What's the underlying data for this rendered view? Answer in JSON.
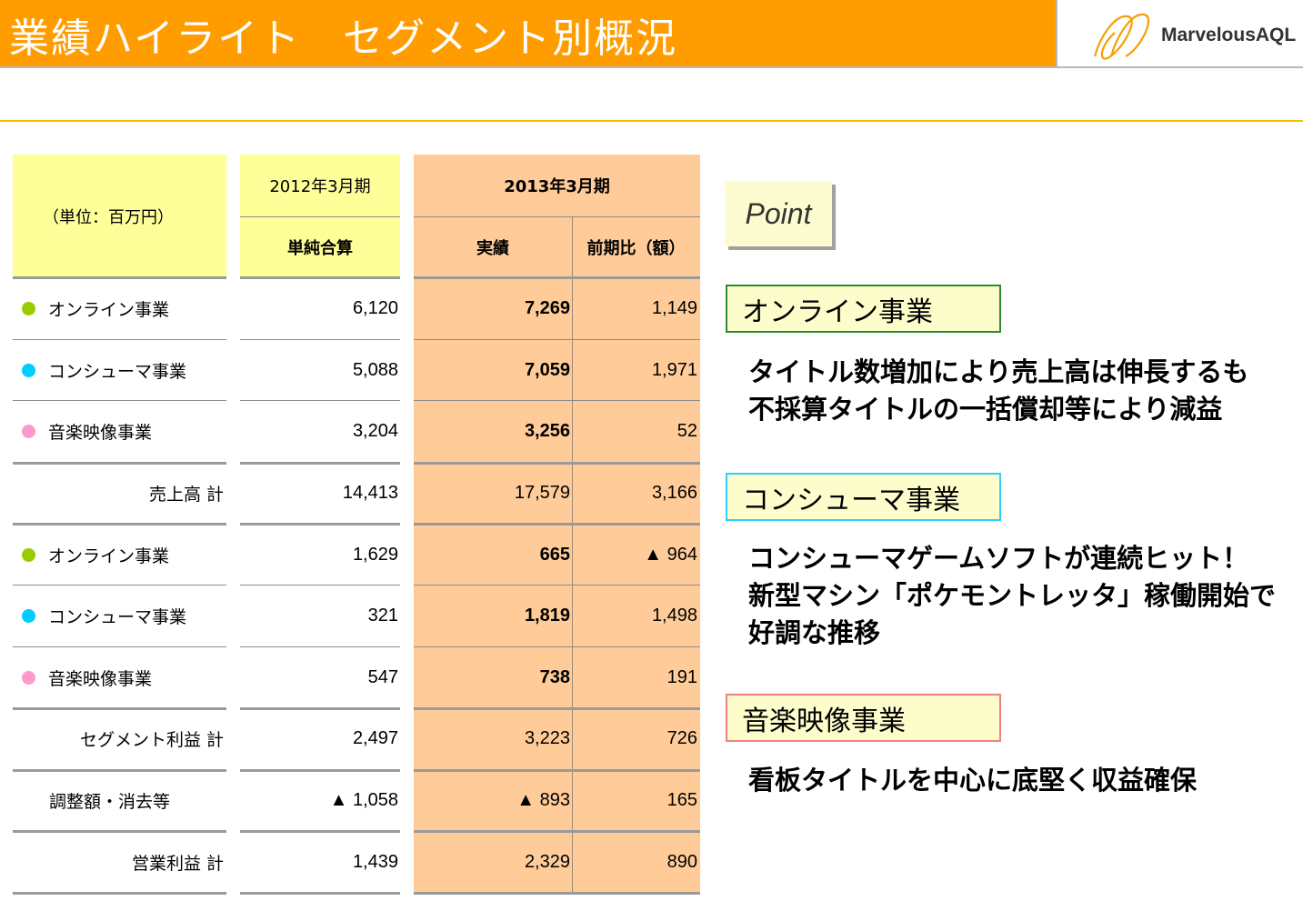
{
  "header": {
    "title": "業績ハイライト　セグメント別概況",
    "logo_text": "MarvelousAQL"
  },
  "table": {
    "unit_label": "（単位：百万円）",
    "period_prev": "2012年3月期",
    "period_curr": "2013年3月期",
    "col_prev": "単純合算",
    "col_actual": "実績",
    "col_diff": "前期比（額）",
    "rows": [
      {
        "label": "オンライン事業",
        "dot": "#99cc00",
        "prev": "6,120",
        "actual": "7,269",
        "diff": "1,149"
      },
      {
        "label": "コンシューマ事業",
        "dot": "#00ccff",
        "prev": "5,088",
        "actual": "7,059",
        "diff": "1,971"
      },
      {
        "label": "音楽映像事業",
        "dot": "#ff99cc",
        "prev": "3,204",
        "actual": "3,256",
        "diff": "52"
      },
      {
        "label": "売上高 計",
        "prev": "14,413",
        "actual": "17,579",
        "diff": "3,166"
      },
      {
        "label": "オンライン事業",
        "dot": "#99cc00",
        "prev": "1,629",
        "actual": "665",
        "diff": "▲ 964"
      },
      {
        "label": "コンシューマ事業",
        "dot": "#00ccff",
        "prev": "321",
        "actual": "1,819",
        "diff": "1,498"
      },
      {
        "label": "音楽映像事業",
        "dot": "#ff99cc",
        "prev": "547",
        "actual": "738",
        "diff": "191"
      },
      {
        "label": "セグメント利益 計",
        "prev": "2,497",
        "actual": "3,223",
        "diff": "726"
      },
      {
        "label": "調整額・消去等",
        "prev": "▲ 1,058",
        "actual": "▲ 893",
        "diff": "165"
      },
      {
        "label": "営業利益 計",
        "prev": "1,439",
        "actual": "2,329",
        "diff": "890"
      }
    ]
  },
  "points": {
    "title": "Point",
    "segments": [
      {
        "name": "オンライン事業",
        "border": "#2e8b2e",
        "lines": [
          "タイトル数増加により売上高は伸長するも",
          "不採算タイトルの一括償却等により減益"
        ]
      },
      {
        "name": "コンシューマ事業",
        "border": "#33ccff",
        "lines": [
          "コンシューマゲームソフトが連続ヒット！",
          "新型マシン「ポケモントレッタ」稼働開始で",
          "好調な推移"
        ]
      },
      {
        "name": "音楽映像事業",
        "border": "#f08080",
        "lines": [
          "看板タイトルを中心に底堅く収益確保"
        ]
      }
    ]
  },
  "colors": {
    "header": "#ff9c00",
    "label_bg": "#ffff99",
    "current_bg": "#ffcc99",
    "gold_rule": "#f2c000"
  }
}
